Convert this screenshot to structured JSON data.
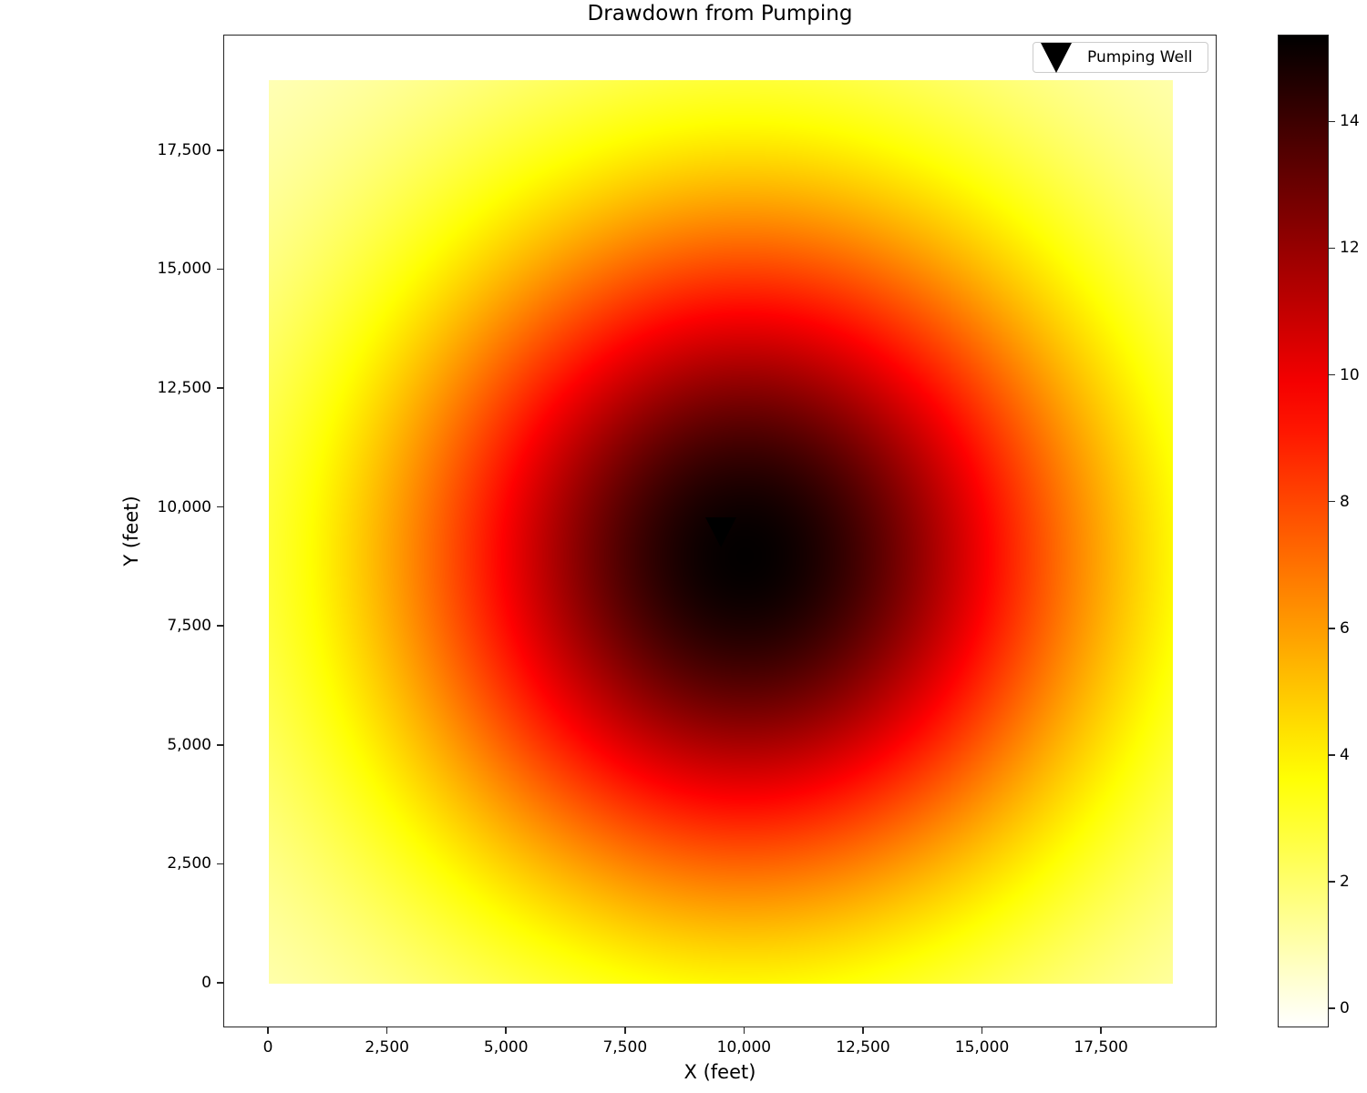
{
  "chart_data": {
    "type": "heatmap",
    "title": "Drawdown from Pumping",
    "xlabel": "X (feet)",
    "ylabel": "Y (feet)",
    "xlim": [
      -940,
      19930
    ],
    "ylim": [
      -940,
      19930
    ],
    "x_ticks": [
      0,
      2500,
      5000,
      7500,
      10000,
      12500,
      15000,
      17500
    ],
    "x_tick_labels": [
      "0",
      "2,500",
      "5,000",
      "7,500",
      "10,000",
      "12,500",
      "15,000",
      "17,500"
    ],
    "y_ticks": [
      0,
      2500,
      5000,
      7500,
      10000,
      12500,
      15000,
      17500
    ],
    "y_tick_labels": [
      "0",
      "2,500",
      "5,000",
      "7,500",
      "10,000",
      "12,500",
      "15,000",
      "17,500"
    ],
    "grid": false,
    "data_extent": {
      "x": [
        0,
        19000
      ],
      "y": [
        0,
        19000
      ]
    },
    "colormap": "hot_r",
    "colorbar": {
      "range": [
        -0.3,
        15.37
      ],
      "ticks": [
        0,
        2,
        4,
        6,
        8,
        10,
        12,
        14
      ],
      "tick_labels": [
        "0",
        "2",
        "4",
        "6",
        "8",
        "10",
        "12",
        "14"
      ]
    },
    "field": {
      "description": "Radial drawdown cone centered near the pumping well",
      "peak": {
        "x": 10000,
        "y": 9000,
        "value": 15.3
      },
      "approx_radius_value_10_ft": 3600,
      "approx_radius_value_4_ft": 7000,
      "edge_value": 0.5
    },
    "markers": [
      {
        "name": "Pumping Well",
        "x": 9500,
        "y": 9500,
        "shape": "triangle-down",
        "color": "#000000"
      }
    ],
    "legend": {
      "entries": [
        "Pumping Well"
      ],
      "position": "upper right"
    }
  },
  "legend": {
    "label": "Pumping Well"
  }
}
